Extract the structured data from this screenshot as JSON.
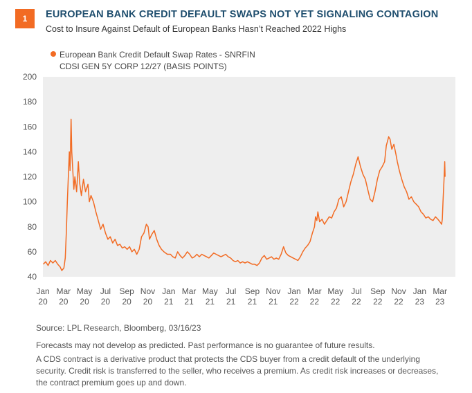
{
  "badge": "1",
  "title": "EUROPEAN BANK CREDIT DEFAULT SWAPS NOT YET SIGNALING CONTAGION",
  "subtitle": "Cost to Insure Against Default of European Banks Hasn’t Reached 2022 Highs",
  "legend": {
    "line1": "European Bank Credit Default Swap Rates - SNRFIN",
    "line2": "CDSI GEN 5Y CORP 12/27 (BASIS POINTS)"
  },
  "source": "Source: LPL Research,  Bloomberg,  03/16/23",
  "disclaimer": "Forecasts may not develop as predicted. Past performance is no guarantee of future results.",
  "note_lines": [
    "A CDS contract is a derivative product that protects the CDS buyer from a credit default of the underlying",
    "security. Credit risk is transferred to the seller, who receives a premium. As credit risk increases or decreases,",
    "the contract premium goes up and down."
  ],
  "colors": {
    "series": "#f26b23",
    "plot_bg": "#eeeeee",
    "title": "#1f4e6e"
  },
  "chart_data": {
    "type": "line",
    "x_unit": "date",
    "ylim": [
      40,
      200
    ],
    "yticks": [
      40,
      60,
      80,
      100,
      120,
      140,
      160,
      180,
      200
    ],
    "xlim": [
      "2020-01-01",
      "2023-04-15"
    ],
    "grid": false,
    "legend_position": "top-left",
    "xticks": [
      {
        "date": "2020-01-01",
        "label1": "Jan",
        "label2": "20"
      },
      {
        "date": "2020-03-01",
        "label1": "Mar",
        "label2": "20"
      },
      {
        "date": "2020-05-01",
        "label1": "May",
        "label2": "20"
      },
      {
        "date": "2020-07-01",
        "label1": "Jul",
        "label2": "20"
      },
      {
        "date": "2020-09-01",
        "label1": "Sep",
        "label2": "20"
      },
      {
        "date": "2020-11-01",
        "label1": "Nov",
        "label2": "20"
      },
      {
        "date": "2021-01-01",
        "label1": "Jan",
        "label2": "21"
      },
      {
        "date": "2021-03-01",
        "label1": "Mar",
        "label2": "21"
      },
      {
        "date": "2021-05-01",
        "label1": "May",
        "label2": "21"
      },
      {
        "date": "2021-07-01",
        "label1": "Jul",
        "label2": "21"
      },
      {
        "date": "2021-09-01",
        "label1": "Sep",
        "label2": "21"
      },
      {
        "date": "2021-11-01",
        "label1": "Nov",
        "label2": "21"
      },
      {
        "date": "2022-01-01",
        "label1": "Jan",
        "label2": "22"
      },
      {
        "date": "2022-03-01",
        "label1": "Mar",
        "label2": "22"
      },
      {
        "date": "2022-05-01",
        "label1": "May",
        "label2": "22"
      },
      {
        "date": "2022-07-01",
        "label1": "Jul",
        "label2": "22"
      },
      {
        "date": "2022-09-01",
        "label1": "Sep",
        "label2": "22"
      },
      {
        "date": "2022-11-01",
        "label1": "Nov",
        "label2": "22"
      },
      {
        "date": "2023-01-01",
        "label1": "Jan",
        "label2": "23"
      },
      {
        "date": "2023-03-01",
        "label1": "Mar",
        "label2": "23"
      }
    ],
    "series": [
      {
        "name": "European Bank Credit Default Swap Rates - SNRFIN CDSI GEN 5Y CORP 12/27 (BASIS POINTS)",
        "points": [
          [
            "2020-01-02",
            50
          ],
          [
            "2020-01-09",
            52
          ],
          [
            "2020-01-16",
            49
          ],
          [
            "2020-01-23",
            53
          ],
          [
            "2020-01-30",
            51
          ],
          [
            "2020-02-06",
            53
          ],
          [
            "2020-02-13",
            50
          ],
          [
            "2020-02-20",
            48
          ],
          [
            "2020-02-25",
            45
          ],
          [
            "2020-03-02",
            47
          ],
          [
            "2020-03-06",
            55
          ],
          [
            "2020-03-09",
            75
          ],
          [
            "2020-03-12",
            100
          ],
          [
            "2020-03-16",
            128
          ],
          [
            "2020-03-18",
            140
          ],
          [
            "2020-03-20",
            125
          ],
          [
            "2020-03-23",
            166
          ],
          [
            "2020-03-25",
            140
          ],
          [
            "2020-03-27",
            130
          ],
          [
            "2020-03-31",
            110
          ],
          [
            "2020-04-03",
            120
          ],
          [
            "2020-04-08",
            108
          ],
          [
            "2020-04-13",
            132
          ],
          [
            "2020-04-17",
            115
          ],
          [
            "2020-04-22",
            105
          ],
          [
            "2020-04-28",
            118
          ],
          [
            "2020-05-04",
            108
          ],
          [
            "2020-05-11",
            114
          ],
          [
            "2020-05-15",
            100
          ],
          [
            "2020-05-20",
            105
          ],
          [
            "2020-05-27",
            100
          ],
          [
            "2020-06-03",
            92
          ],
          [
            "2020-06-10",
            85
          ],
          [
            "2020-06-17",
            78
          ],
          [
            "2020-06-24",
            82
          ],
          [
            "2020-07-01",
            75
          ],
          [
            "2020-07-08",
            70
          ],
          [
            "2020-07-15",
            72
          ],
          [
            "2020-07-22",
            67
          ],
          [
            "2020-07-29",
            70
          ],
          [
            "2020-08-05",
            65
          ],
          [
            "2020-08-12",
            66
          ],
          [
            "2020-08-19",
            63
          ],
          [
            "2020-08-26",
            64
          ],
          [
            "2020-09-02",
            62
          ],
          [
            "2020-09-09",
            64
          ],
          [
            "2020-09-16",
            60
          ],
          [
            "2020-09-23",
            62
          ],
          [
            "2020-09-30",
            58
          ],
          [
            "2020-10-07",
            62
          ],
          [
            "2020-10-14",
            72
          ],
          [
            "2020-10-21",
            75
          ],
          [
            "2020-10-28",
            82
          ],
          [
            "2020-11-02",
            80
          ],
          [
            "2020-11-06",
            70
          ],
          [
            "2020-11-13",
            74
          ],
          [
            "2020-11-20",
            77
          ],
          [
            "2020-11-27",
            70
          ],
          [
            "2020-12-04",
            65
          ],
          [
            "2020-12-11",
            62
          ],
          [
            "2020-12-18",
            60
          ],
          [
            "2020-12-28",
            58
          ],
          [
            "2021-01-06",
            58
          ],
          [
            "2021-01-13",
            56
          ],
          [
            "2021-01-20",
            55
          ],
          [
            "2021-01-27",
            60
          ],
          [
            "2021-02-03",
            57
          ],
          [
            "2021-02-10",
            55
          ],
          [
            "2021-02-17",
            57
          ],
          [
            "2021-02-24",
            60
          ],
          [
            "2021-03-03",
            58
          ],
          [
            "2021-03-10",
            55
          ],
          [
            "2021-03-17",
            56
          ],
          [
            "2021-03-24",
            58
          ],
          [
            "2021-03-31",
            56
          ],
          [
            "2021-04-07",
            58
          ],
          [
            "2021-04-14",
            57
          ],
          [
            "2021-04-21",
            56
          ],
          [
            "2021-04-28",
            55
          ],
          [
            "2021-05-05",
            57
          ],
          [
            "2021-05-12",
            59
          ],
          [
            "2021-05-19",
            58
          ],
          [
            "2021-05-26",
            57
          ],
          [
            "2021-06-02",
            56
          ],
          [
            "2021-06-09",
            57
          ],
          [
            "2021-06-16",
            58
          ],
          [
            "2021-06-23",
            56
          ],
          [
            "2021-06-30",
            55
          ],
          [
            "2021-07-07",
            53
          ],
          [
            "2021-07-14",
            52
          ],
          [
            "2021-07-21",
            53
          ],
          [
            "2021-07-28",
            51
          ],
          [
            "2021-08-04",
            52
          ],
          [
            "2021-08-11",
            51
          ],
          [
            "2021-08-18",
            52
          ],
          [
            "2021-08-25",
            51
          ],
          [
            "2021-09-01",
            50
          ],
          [
            "2021-09-08",
            50
          ],
          [
            "2021-09-15",
            49
          ],
          [
            "2021-09-22",
            51
          ],
          [
            "2021-09-29",
            55
          ],
          [
            "2021-10-06",
            57
          ],
          [
            "2021-10-13",
            54
          ],
          [
            "2021-10-20",
            55
          ],
          [
            "2021-10-27",
            56
          ],
          [
            "2021-11-03",
            54
          ],
          [
            "2021-11-10",
            55
          ],
          [
            "2021-11-17",
            54
          ],
          [
            "2021-11-24",
            58
          ],
          [
            "2021-12-01",
            64
          ],
          [
            "2021-12-08",
            59
          ],
          [
            "2021-12-15",
            57
          ],
          [
            "2021-12-22",
            56
          ],
          [
            "2021-12-29",
            55
          ],
          [
            "2022-01-05",
            54
          ],
          [
            "2022-01-12",
            53
          ],
          [
            "2022-01-19",
            56
          ],
          [
            "2022-01-26",
            60
          ],
          [
            "2022-02-02",
            63
          ],
          [
            "2022-02-09",
            65
          ],
          [
            "2022-02-16",
            68
          ],
          [
            "2022-02-23",
            75
          ],
          [
            "2022-03-01",
            80
          ],
          [
            "2022-03-04",
            88
          ],
          [
            "2022-03-08",
            85
          ],
          [
            "2022-03-11",
            92
          ],
          [
            "2022-03-16",
            84
          ],
          [
            "2022-03-23",
            86
          ],
          [
            "2022-03-30",
            82
          ],
          [
            "2022-04-06",
            85
          ],
          [
            "2022-04-13",
            88
          ],
          [
            "2022-04-20",
            87
          ],
          [
            "2022-04-27",
            92
          ],
          [
            "2022-05-04",
            95
          ],
          [
            "2022-05-11",
            102
          ],
          [
            "2022-05-18",
            104
          ],
          [
            "2022-05-25",
            96
          ],
          [
            "2022-06-01",
            100
          ],
          [
            "2022-06-08",
            108
          ],
          [
            "2022-06-15",
            116
          ],
          [
            "2022-06-22",
            122
          ],
          [
            "2022-06-29",
            130
          ],
          [
            "2022-07-06",
            136
          ],
          [
            "2022-07-13",
            128
          ],
          [
            "2022-07-20",
            122
          ],
          [
            "2022-07-27",
            118
          ],
          [
            "2022-08-03",
            110
          ],
          [
            "2022-08-10",
            102
          ],
          [
            "2022-08-17",
            100
          ],
          [
            "2022-08-24",
            108
          ],
          [
            "2022-08-31",
            118
          ],
          [
            "2022-09-07",
            125
          ],
          [
            "2022-09-14",
            128
          ],
          [
            "2022-09-21",
            132
          ],
          [
            "2022-09-26",
            145
          ],
          [
            "2022-09-29",
            148
          ],
          [
            "2022-10-03",
            152
          ],
          [
            "2022-10-07",
            150
          ],
          [
            "2022-10-12",
            142
          ],
          [
            "2022-10-18",
            146
          ],
          [
            "2022-10-24",
            138
          ],
          [
            "2022-10-28",
            132
          ],
          [
            "2022-11-03",
            125
          ],
          [
            "2022-11-10",
            118
          ],
          [
            "2022-11-17",
            112
          ],
          [
            "2022-11-24",
            108
          ],
          [
            "2022-12-01",
            102
          ],
          [
            "2022-12-08",
            104
          ],
          [
            "2022-12-15",
            100
          ],
          [
            "2022-12-22",
            98
          ],
          [
            "2022-12-29",
            96
          ],
          [
            "2023-01-05",
            92
          ],
          [
            "2023-01-12",
            90
          ],
          [
            "2023-01-19",
            87
          ],
          [
            "2023-01-26",
            88
          ],
          [
            "2023-02-02",
            86
          ],
          [
            "2023-02-09",
            85
          ],
          [
            "2023-02-16",
            88
          ],
          [
            "2023-02-23",
            86
          ],
          [
            "2023-03-01",
            84
          ],
          [
            "2023-03-06",
            82
          ],
          [
            "2023-03-08",
            86
          ],
          [
            "2023-03-10",
            100
          ],
          [
            "2023-03-13",
            118
          ],
          [
            "2023-03-15",
            132
          ],
          [
            "2023-03-16",
            120
          ]
        ]
      }
    ]
  }
}
